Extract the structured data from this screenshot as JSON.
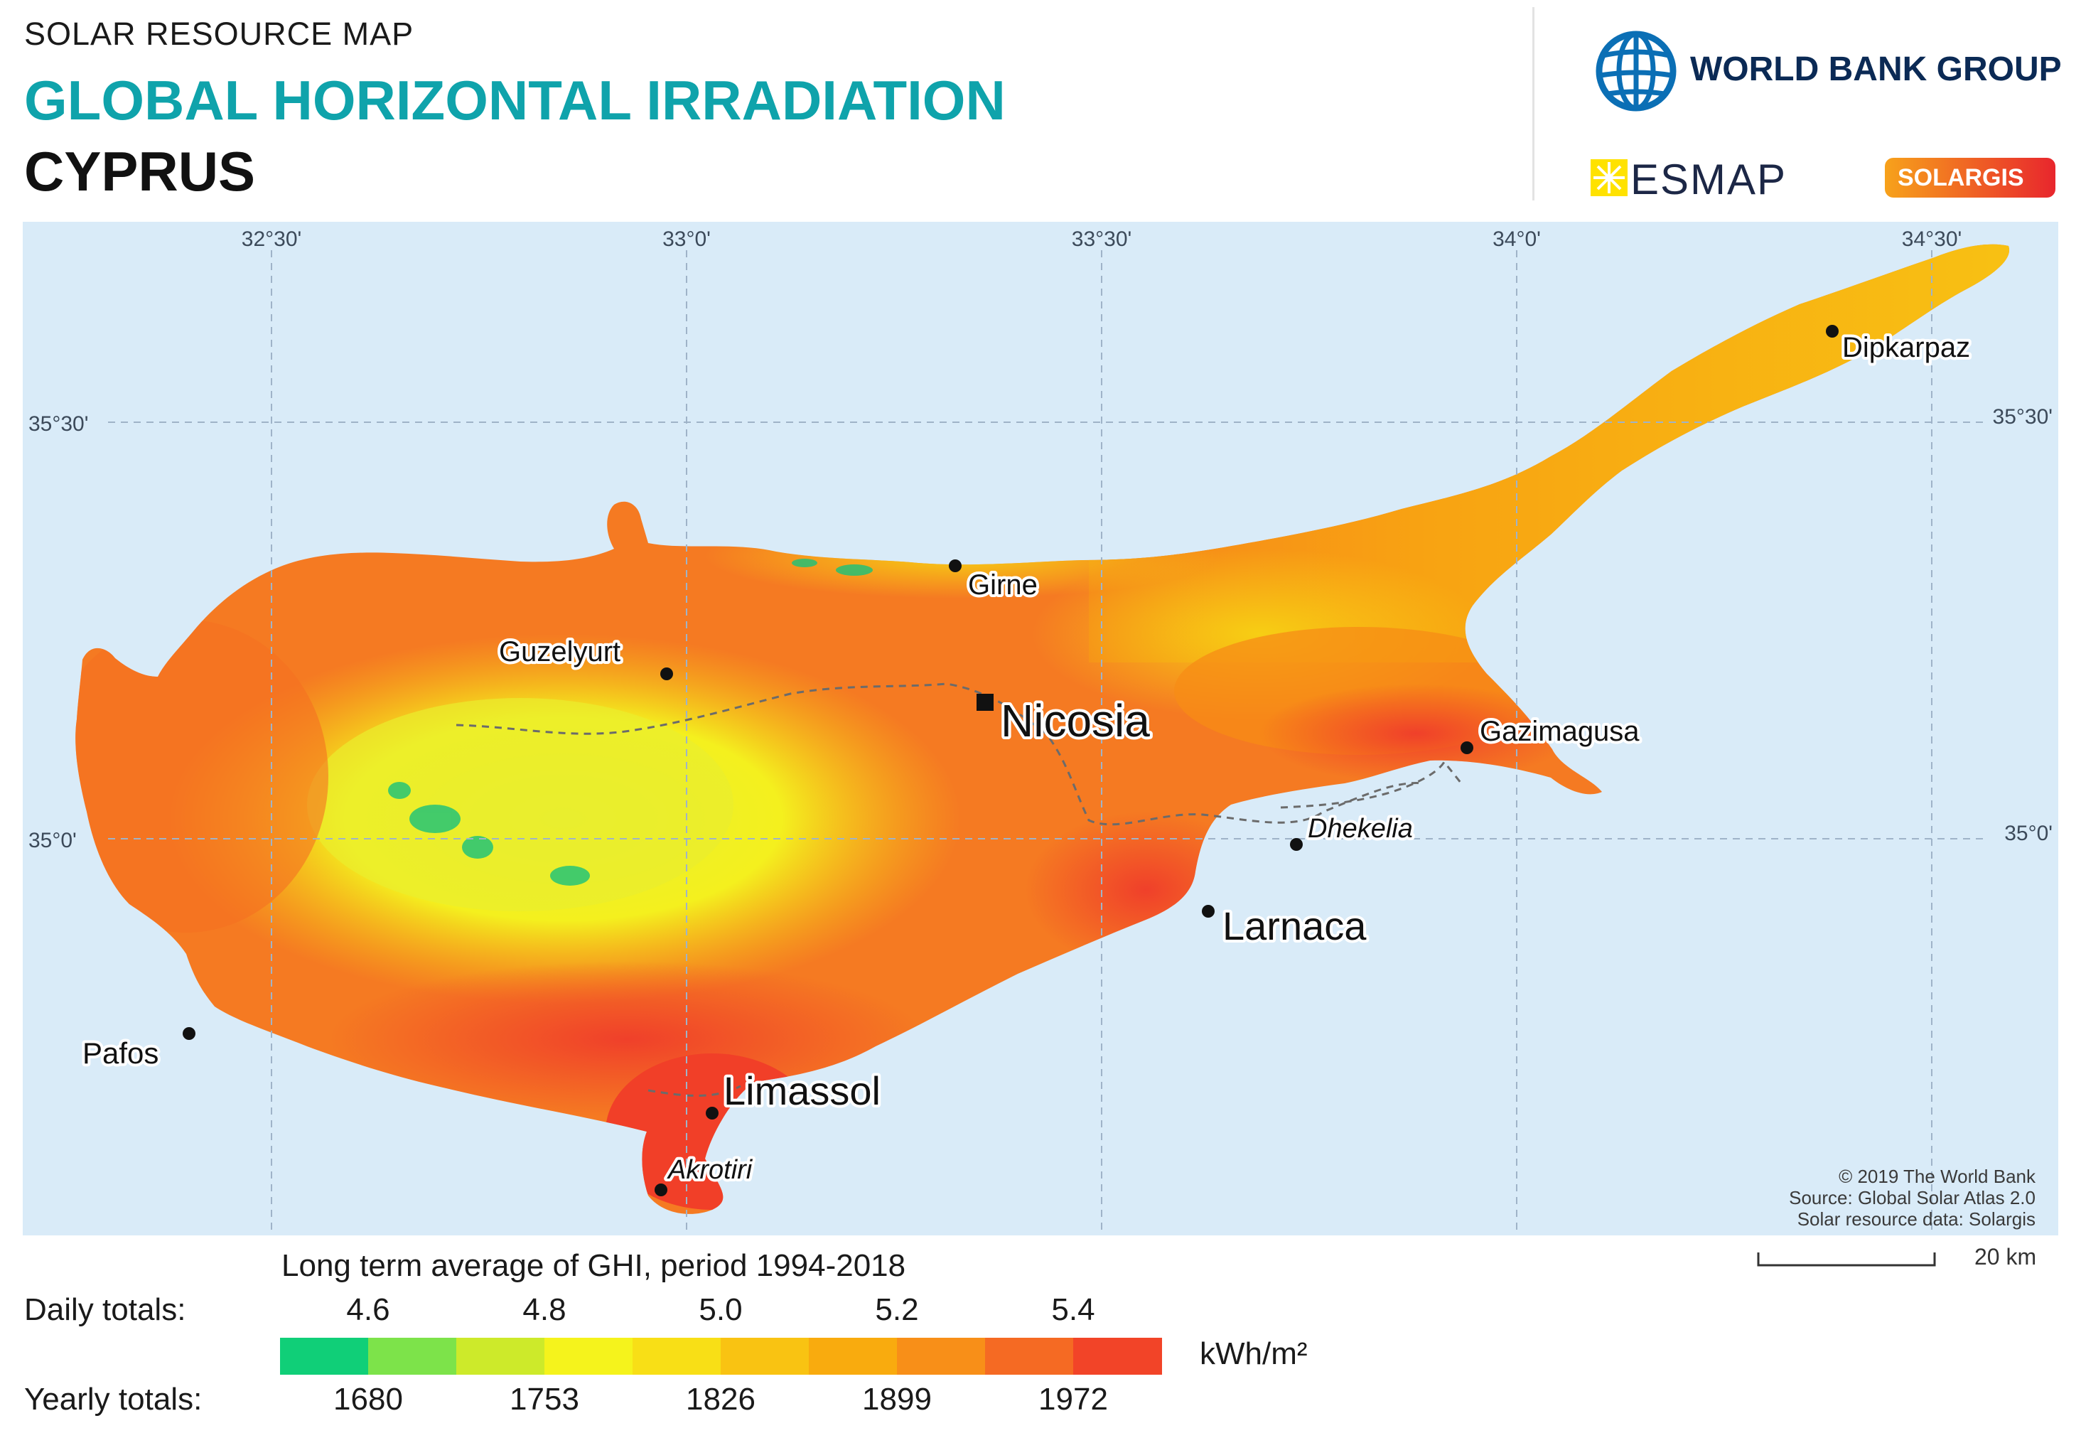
{
  "header": {
    "subtitle": "SOLAR RESOURCE MAP",
    "title": "GLOBAL HORIZONTAL IRRADIATION",
    "country": "CYPRUS"
  },
  "logos": {
    "world_bank": "WORLD BANK GROUP",
    "esmap": "ESMAP",
    "solargis": "SOLARGIS"
  },
  "map": {
    "longitude_labels": [
      "32°30'",
      "33°0'",
      "33°30'",
      "34°0'",
      "34°30'"
    ],
    "latitude_labels": [
      "35°30'",
      "35°0'"
    ],
    "places": [
      {
        "name": "Dipkarpaz",
        "type": "town"
      },
      {
        "name": "Girne",
        "type": "town"
      },
      {
        "name": "Guzelyurt",
        "type": "town"
      },
      {
        "name": "Nicosia",
        "type": "capital"
      },
      {
        "name": "Gazimagusa",
        "type": "town"
      },
      {
        "name": "Dhekelia",
        "type": "base"
      },
      {
        "name": "Larnaca",
        "type": "city"
      },
      {
        "name": "Pafos",
        "type": "town"
      },
      {
        "name": "Limassol",
        "type": "city"
      },
      {
        "name": "Akrotiri",
        "type": "base"
      }
    ],
    "credits": [
      "© 2019 The World Bank",
      "Source: Global Solar Atlas 2.0",
      "Solar resource data: Solargis"
    ],
    "scale_bar": "20 km",
    "colors": {
      "sea": "#d9ebf8",
      "grid": "#9fb3c8"
    }
  },
  "legend": {
    "title": "Long term average of GHI, period 1994-2018",
    "daily_label": "Daily totals:",
    "yearly_label": "Yearly totals:",
    "daily_ticks": [
      "4.6",
      "4.8",
      "5.0",
      "5.2",
      "5.4"
    ],
    "yearly_ticks": [
      "1680",
      "1753",
      "1826",
      "1899",
      "1972"
    ],
    "unit": "kWh/m²",
    "colors": [
      "#10cf78",
      "#7de34a",
      "#cdea2a",
      "#f5f31c",
      "#f8df16",
      "#f9c312",
      "#f9ab0e",
      "#f88f18",
      "#f56a23",
      "#f24428"
    ]
  }
}
